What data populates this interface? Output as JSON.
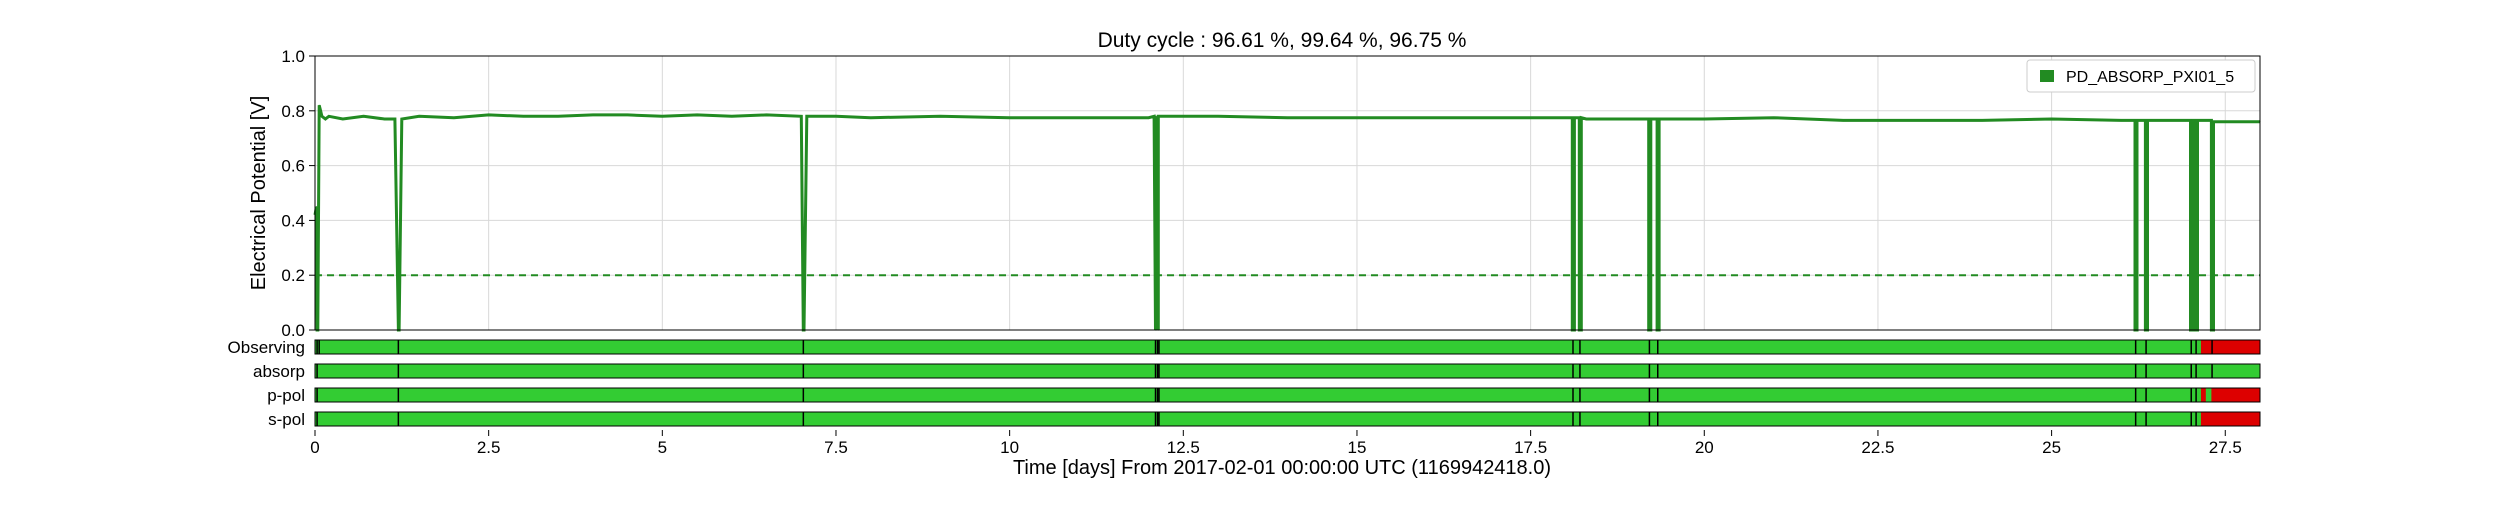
{
  "chart_data": {
    "type": "line",
    "title": "Duty cycle : 96.61 %, 99.64 %, 96.75 %",
    "xlabel": "Time [days] From 2017-02-01 00:00:00 UTC (1169942418.0)",
    "ylabel": "Electrical Potential [V]",
    "xlim": [
      0,
      28
    ],
    "ylim": [
      0.0,
      1.0
    ],
    "x_ticks": [
      0,
      2.5,
      5,
      7.5,
      10,
      12.5,
      15,
      17.5,
      20,
      22.5,
      25,
      27.5
    ],
    "x_tick_labels": [
      "0",
      "2.5",
      "5",
      "7.5",
      "10",
      "12.5",
      "15",
      "17.5",
      "20",
      "22.5",
      "25",
      "27.5"
    ],
    "y_ticks": [
      0.0,
      0.2,
      0.4,
      0.6,
      0.8,
      1.0
    ],
    "y_tick_labels": [
      "0.0",
      "0.2",
      "0.4",
      "0.6",
      "0.8",
      "1.0"
    ],
    "grid": true,
    "legend_position": "top-right",
    "threshold": 0.2,
    "series": [
      {
        "name": "PD_ABSORP_PXI01_5",
        "color": "#228b22",
        "x": [
          0.0,
          0.02,
          0.03,
          0.04,
          0.06,
          0.08,
          0.1,
          0.15,
          0.2,
          0.4,
          0.7,
          1.0,
          1.15,
          1.2,
          1.21,
          1.25,
          1.5,
          2.0,
          2.5,
          3.0,
          3.5,
          4.0,
          4.5,
          5.0,
          5.5,
          6.0,
          6.5,
          7.0,
          7.03,
          7.04,
          7.08,
          7.5,
          8.0,
          9.0,
          10.0,
          11.0,
          12.0,
          12.08,
          12.1,
          12.1,
          12.12,
          12.12,
          12.14,
          12.14,
          12.16,
          12.2,
          13.0,
          14.0,
          15.0,
          16.0,
          17.0,
          18.0,
          18.1,
          18.1,
          18.13,
          18.13,
          18.2,
          18.2,
          18.23,
          18.23,
          18.3,
          19.0,
          19.2,
          19.2,
          19.23,
          19.23,
          19.32,
          19.32,
          19.35,
          19.35,
          19.5,
          20.0,
          21.0,
          22.0,
          23.0,
          24.0,
          25.0,
          26.0,
          26.2,
          26.2,
          26.23,
          26.23,
          26.35,
          26.35,
          26.38,
          26.38,
          26.5,
          26.95,
          27.0,
          27.0,
          27.02,
          27.02,
          27.06,
          27.06,
          27.1,
          27.1,
          27.3,
          27.3,
          27.33,
          27.33,
          27.5,
          28.0
        ],
        "y": [
          0.42,
          0.45,
          0.0,
          0.0,
          0.82,
          0.8,
          0.78,
          0.77,
          0.78,
          0.77,
          0.78,
          0.77,
          0.77,
          0.0,
          0.0,
          0.77,
          0.78,
          0.775,
          0.785,
          0.78,
          0.78,
          0.785,
          0.785,
          0.78,
          0.785,
          0.78,
          0.785,
          0.78,
          0.0,
          0.0,
          0.78,
          0.78,
          0.775,
          0.78,
          0.775,
          0.775,
          0.775,
          0.78,
          0.0,
          0.78,
          0.0,
          0.78,
          0.0,
          0.78,
          0.78,
          0.78,
          0.78,
          0.775,
          0.775,
          0.775,
          0.775,
          0.775,
          0.775,
          0.0,
          0.0,
          0.775,
          0.775,
          0.0,
          0.0,
          0.775,
          0.77,
          0.77,
          0.77,
          0.0,
          0.0,
          0.77,
          0.77,
          0.0,
          0.0,
          0.77,
          0.77,
          0.77,
          0.775,
          0.765,
          0.765,
          0.765,
          0.77,
          0.765,
          0.765,
          0.0,
          0.0,
          0.765,
          0.765,
          0.0,
          0.0,
          0.765,
          0.765,
          0.765,
          0.765,
          0.0,
          0.0,
          0.765,
          0.765,
          0.0,
          0.0,
          0.765,
          0.765,
          0.0,
          0.0,
          0.76,
          0.76,
          0.76
        ]
      }
    ],
    "state_rows": [
      {
        "label": "Observing",
        "on_color": "#33cc33",
        "off_color": "#dd0000",
        "off_segments": [
          [
            27.15,
            28.0
          ]
        ],
        "gaps": [
          0.03,
          0.06,
          1.2,
          7.03,
          12.1,
          12.13,
          12.15,
          18.11,
          18.21,
          19.21,
          19.33,
          26.21,
          26.36,
          27.01,
          27.08,
          27.31
        ]
      },
      {
        "label": "absorp",
        "on_color": "#33cc33",
        "off_color": "#dd0000",
        "off_segments": [],
        "gaps": [
          0.03,
          1.2,
          7.03,
          12.1,
          12.13,
          12.15,
          18.11,
          18.21,
          19.21,
          19.33,
          26.21,
          26.36,
          27.01,
          27.08,
          27.31
        ]
      },
      {
        "label": "p-pol",
        "on_color": "#33cc33",
        "off_color": "#dd0000",
        "off_segments": [
          [
            27.15,
            27.22
          ],
          [
            27.3,
            28.0
          ]
        ],
        "gaps": [
          0.03,
          1.2,
          7.03,
          12.1,
          12.13,
          12.15,
          18.11,
          18.21,
          19.21,
          19.33,
          26.21,
          26.36,
          27.01,
          27.08
        ]
      },
      {
        "label": "s-pol",
        "on_color": "#33cc33",
        "off_color": "#dd0000",
        "off_segments": [
          [
            27.15,
            28.0
          ]
        ],
        "gaps": [
          0.03,
          1.2,
          7.03,
          12.1,
          12.13,
          12.15,
          18.11,
          18.21,
          19.21,
          19.33,
          26.21,
          26.36,
          27.01,
          27.08
        ]
      }
    ]
  }
}
